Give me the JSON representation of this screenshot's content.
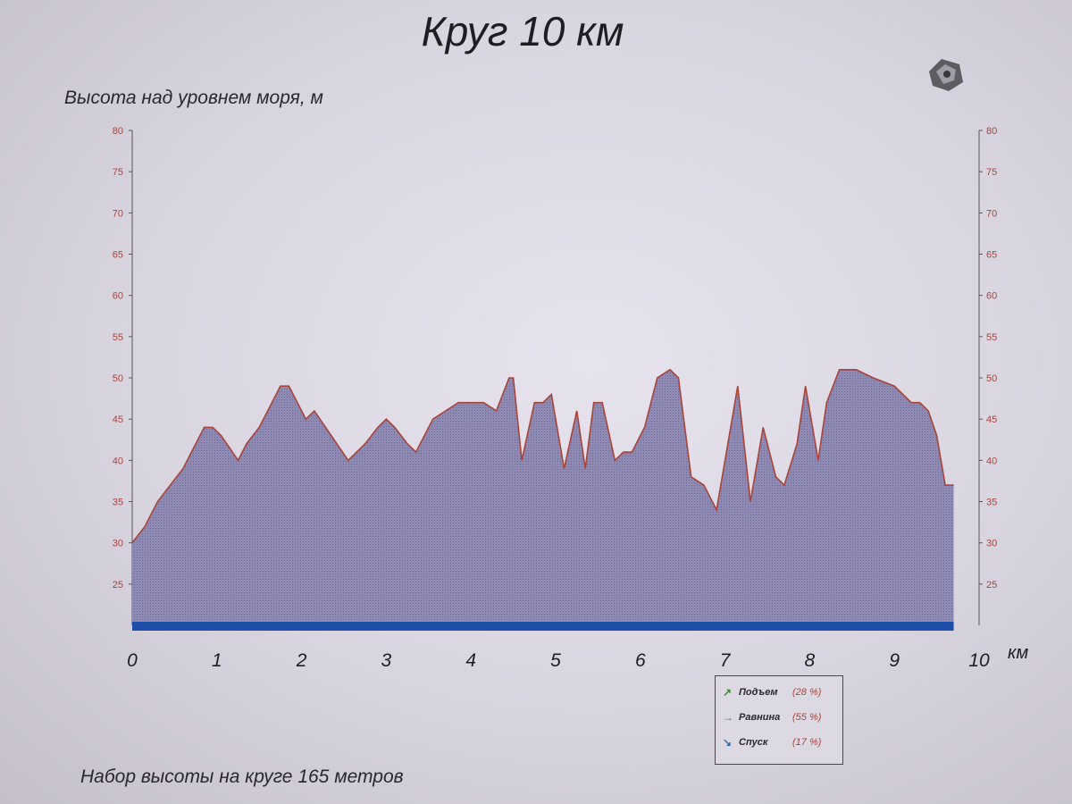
{
  "title": "Круг 10 км",
  "ylabel": "Высота над уровнем моря, м",
  "footnote": "Набор высоты на круге 165 метров",
  "colors": {
    "fill": "#8a86b0",
    "line": "#a8443a",
    "baseline": "#1f4fa8",
    "tick_left": "#a8443a"
  },
  "chart_data": {
    "type": "area",
    "xunit": "км",
    "xlim": [
      0,
      10
    ],
    "ylim": [
      20,
      80
    ],
    "x_ticks": [
      "0",
      "1",
      "2",
      "3",
      "4",
      "5",
      "6",
      "7",
      "8",
      "9",
      "10"
    ],
    "y_ticks": [
      "80",
      "75",
      "70",
      "65",
      "60",
      "55",
      "50",
      "45",
      "40",
      "35",
      "30",
      "25"
    ],
    "grid": false,
    "legend_position": "bottom-right",
    "series": [
      {
        "x": [
          0,
          0.15,
          0.3,
          0.45,
          0.6,
          0.75,
          0.85,
          0.95,
          1.05,
          1.25,
          1.35,
          1.5,
          1.65,
          1.75,
          1.85,
          2.05,
          2.15,
          2.35,
          2.55,
          2.75,
          2.9,
          3.0,
          3.1,
          3.25,
          3.35,
          3.55,
          3.85,
          4.1,
          4.15,
          4.3,
          4.45,
          4.5,
          4.6,
          4.75,
          4.85,
          4.95,
          5.1,
          5.25,
          5.35,
          5.45,
          5.55,
          5.7,
          5.8,
          5.9,
          6.05,
          6.2,
          6.35,
          6.45,
          6.6,
          6.75,
          6.9,
          7.05,
          7.15,
          7.3,
          7.45,
          7.6,
          7.7,
          7.85,
          7.95,
          8.1,
          8.2,
          8.35,
          8.55,
          8.75,
          9.0,
          9.2,
          9.3,
          9.4,
          9.5,
          9.6,
          9.7
        ],
        "y": [
          30,
          32,
          35,
          37,
          39,
          42,
          44,
          44,
          43,
          40,
          42,
          44,
          47,
          49,
          49,
          45,
          46,
          43,
          40,
          42,
          44,
          45,
          44,
          42,
          41,
          45,
          47,
          47,
          47,
          46,
          50,
          50,
          40,
          47,
          47,
          48,
          39,
          46,
          39,
          47,
          47,
          40,
          41,
          41,
          44,
          50,
          51,
          50,
          38,
          37,
          34,
          43,
          49,
          35,
          44,
          38,
          37,
          42,
          49,
          40,
          47,
          51,
          51,
          50,
          49,
          47,
          47,
          46,
          43,
          37,
          37
        ]
      }
    ]
  },
  "legend": [
    {
      "icon": "arrow-up-right-icon",
      "label": "Подъем",
      "pct": "(28 %)"
    },
    {
      "icon": "arrow-right-icon",
      "label": "Равнина",
      "pct": "(55 %)"
    },
    {
      "icon": "arrow-down-right-icon",
      "label": "Спуск",
      "pct": "(17 %)"
    }
  ]
}
